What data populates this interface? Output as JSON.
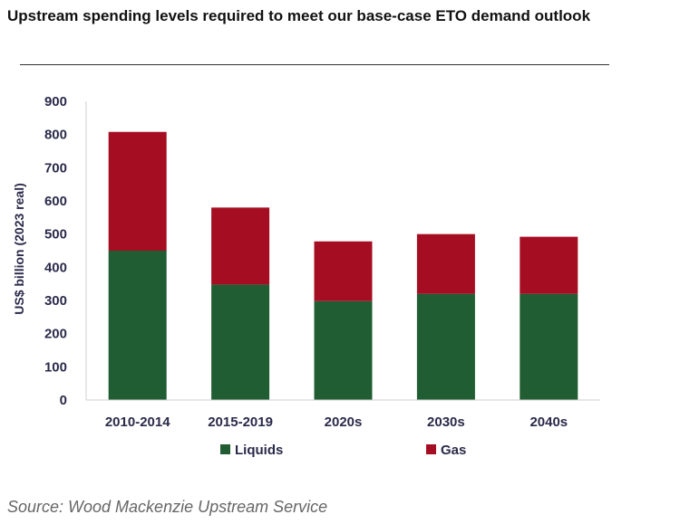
{
  "header": {
    "title": "Upstream spending levels required to meet our base-case ETO demand outlook"
  },
  "footer": {
    "source": "Source: Wood Mackenzie Upstream Service"
  },
  "chart_data": {
    "type": "bar",
    "stacked": true,
    "categories": [
      "2010-2014",
      "2015-2019",
      "2020s",
      "2030s",
      "2040s"
    ],
    "series": [
      {
        "name": "Liquids",
        "color": "#215d33",
        "values": [
          450,
          348,
          298,
          320,
          320
        ]
      },
      {
        "name": "Gas",
        "color": "#a50d22",
        "values": [
          358,
          232,
          180,
          180,
          172
        ]
      }
    ],
    "yticks": [
      0,
      100,
      200,
      300,
      400,
      500,
      600,
      700,
      800,
      900
    ],
    "ylim": [
      0,
      900
    ],
    "ylabel": "US$ billion (2023 real)",
    "xlabel": "",
    "grid": false,
    "legend_position": "bottom"
  }
}
